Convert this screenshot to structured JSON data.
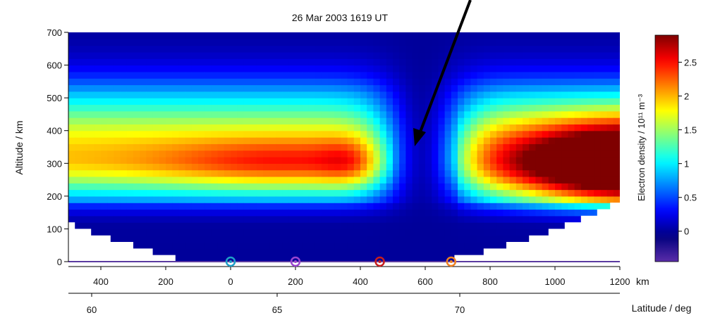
{
  "chart_data": {
    "type": "heatmap",
    "title": "26 Mar 2003 1619 UT",
    "ylabel": "Altitude / km",
    "x_axis_unit": "km",
    "x2label": "Latitude / deg",
    "colorbar_label": "Electron density / 10¹¹ m⁻³",
    "ylim": [
      0,
      700
    ],
    "xlim": [
      -500,
      1200
    ],
    "clim": [
      -0.45,
      2.9
    ],
    "yticks": [
      0,
      100,
      200,
      300,
      400,
      500,
      600,
      700
    ],
    "ytick_labels": [
      "0",
      "100",
      "200",
      "300",
      "400",
      "500",
      "600",
      "700"
    ],
    "xticks": [
      -400,
      -200,
      0,
      200,
      400,
      600,
      800,
      1000,
      1200
    ],
    "xtick_labels": [
      "400",
      "200",
      "0",
      "200",
      "400",
      "600",
      "800",
      "1000",
      "1200"
    ],
    "lat_ticks": [
      60,
      65,
      70
    ],
    "lat_tick_labels": [
      "60",
      "65",
      "70"
    ],
    "colorbar_ticks": [
      0,
      0.5,
      1,
      1.5,
      2,
      2.5
    ],
    "colorbar_tick_labels": [
      "0",
      "0.5",
      "1",
      "1.5",
      "2",
      "2.5"
    ],
    "colormap": [
      "#5a2ca8",
      "#00007f",
      "#0000ff",
      "#0080ff",
      "#00ffff",
      "#80ff80",
      "#ffff00",
      "#ff8000",
      "#ff0000",
      "#7f0000"
    ],
    "features": {
      "f_region_peak_altitude_km": 300,
      "trough_distance_km": 580,
      "trough_note_arrow": true
    },
    "markers": [
      {
        "x": 0,
        "y": 0,
        "color": "#1fa0c8"
      },
      {
        "x": 200,
        "y": 0,
        "color": "#9b44d0"
      },
      {
        "x": 460,
        "y": 0,
        "color": "#c81e1e"
      },
      {
        "x": 680,
        "y": 0,
        "color": "#f08020"
      }
    ]
  }
}
